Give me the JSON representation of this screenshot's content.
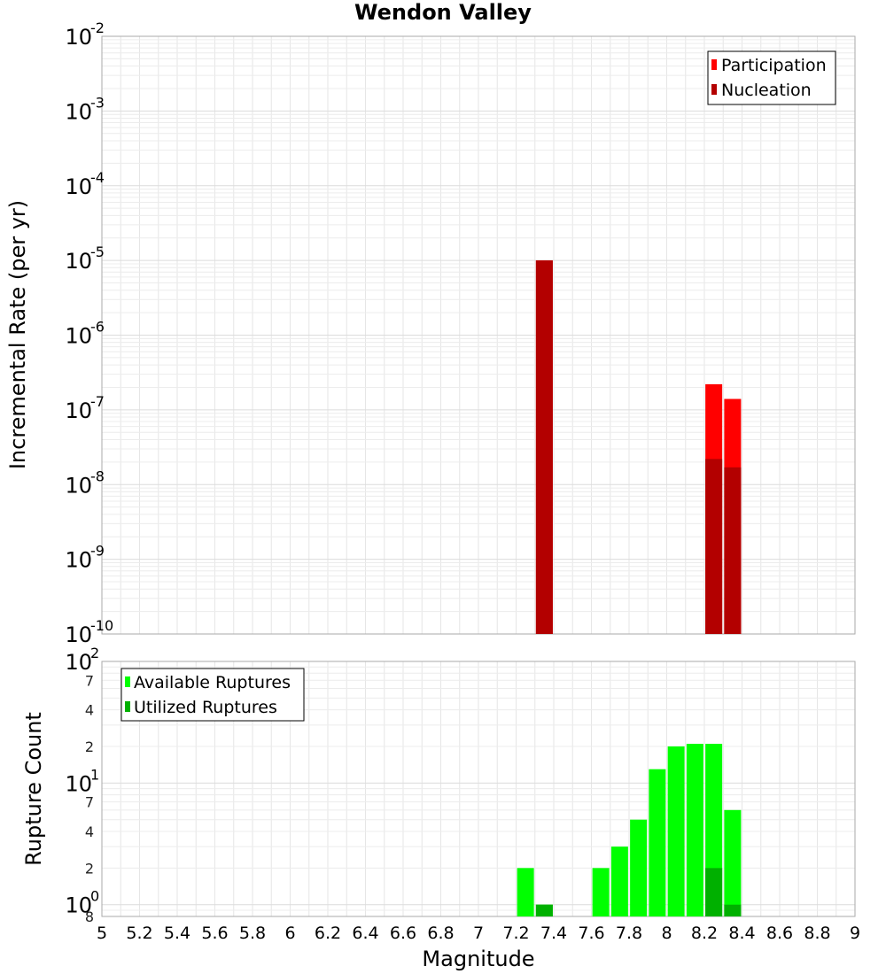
{
  "title": "Wendon Valley",
  "x_axis": {
    "label": "Magnitude",
    "range": [
      5,
      9
    ],
    "tick_labels": [
      "5",
      "5.2",
      "5.4",
      "5.6",
      "5.8",
      "6",
      "6.2",
      "6.4",
      "6.6",
      "6.8",
      "7",
      "7.2",
      "7.4",
      "7.6",
      "7.8",
      "8",
      "8.2",
      "8.4",
      "8.6",
      "8.8",
      "9"
    ]
  },
  "chart_data": [
    {
      "type": "bar",
      "ylabel": "Incremental Rate (per yr)",
      "yscale": "log",
      "ylim": [
        1e-10,
        0.01
      ],
      "y_tick_labels": [
        {
          "base": "10",
          "exp": "-2",
          "value": 0.01
        },
        {
          "base": "10",
          "exp": "-3",
          "value": 0.001
        },
        {
          "base": "10",
          "exp": "-4",
          "value": 0.0001
        },
        {
          "base": "10",
          "exp": "-5",
          "value": 1e-05
        },
        {
          "base": "10",
          "exp": "-6",
          "value": 1e-06
        },
        {
          "base": "10",
          "exp": "-7",
          "value": 1e-07
        },
        {
          "base": "10",
          "exp": "-8",
          "value": 1e-08
        },
        {
          "base": "10",
          "exp": "-9",
          "value": 1e-09
        },
        {
          "base": "10",
          "exp": "-10",
          "value": 1e-10
        }
      ],
      "legend_position": "top-right",
      "series": [
        {
          "name": "Participation",
          "color": "#ff0000",
          "points": [
            {
              "x": 7.35,
              "y": 1e-05
            },
            {
              "x": 8.25,
              "y": 2.2e-07
            },
            {
              "x": 8.35,
              "y": 1.4e-07
            }
          ]
        },
        {
          "name": "Nucleation",
          "color": "#b30000",
          "points": [
            {
              "x": 7.35,
              "y": 1e-05
            },
            {
              "x": 8.25,
              "y": 2.2e-08
            },
            {
              "x": 8.35,
              "y": 1.7e-08
            }
          ]
        }
      ]
    },
    {
      "type": "bar",
      "ylabel": "Rupture Count",
      "yscale": "log",
      "ylim": [
        0.8,
        100
      ],
      "y_tick_labels": [
        {
          "base": "10",
          "exp": "2",
          "value": 100
        },
        {
          "label": "7",
          "value": 70
        },
        {
          "label": "4",
          "value": 40
        },
        {
          "label": "2",
          "value": 20
        },
        {
          "base": "10",
          "exp": "1",
          "value": 10
        },
        {
          "label": "7",
          "value": 7
        },
        {
          "label": "4",
          "value": 4
        },
        {
          "label": "2",
          "value": 2
        },
        {
          "base": "10",
          "exp": "0",
          "value": 1
        },
        {
          "label": "8",
          "value": 0.8
        }
      ],
      "legend_position": "top-left",
      "series": [
        {
          "name": "Available Ruptures",
          "color": "#00ff00",
          "points": [
            {
              "x": 7.25,
              "y": 2
            },
            {
              "x": 7.35,
              "y": 1
            },
            {
              "x": 7.65,
              "y": 2
            },
            {
              "x": 7.75,
              "y": 3
            },
            {
              "x": 7.85,
              "y": 5
            },
            {
              "x": 7.95,
              "y": 13
            },
            {
              "x": 8.05,
              "y": 20
            },
            {
              "x": 8.15,
              "y": 21
            },
            {
              "x": 8.25,
              "y": 21
            },
            {
              "x": 8.35,
              "y": 6
            }
          ]
        },
        {
          "name": "Utilized Ruptures",
          "color": "#00b000",
          "points": [
            {
              "x": 7.35,
              "y": 1
            },
            {
              "x": 8.25,
              "y": 2
            },
            {
              "x": 8.35,
              "y": 1
            }
          ]
        }
      ]
    }
  ]
}
